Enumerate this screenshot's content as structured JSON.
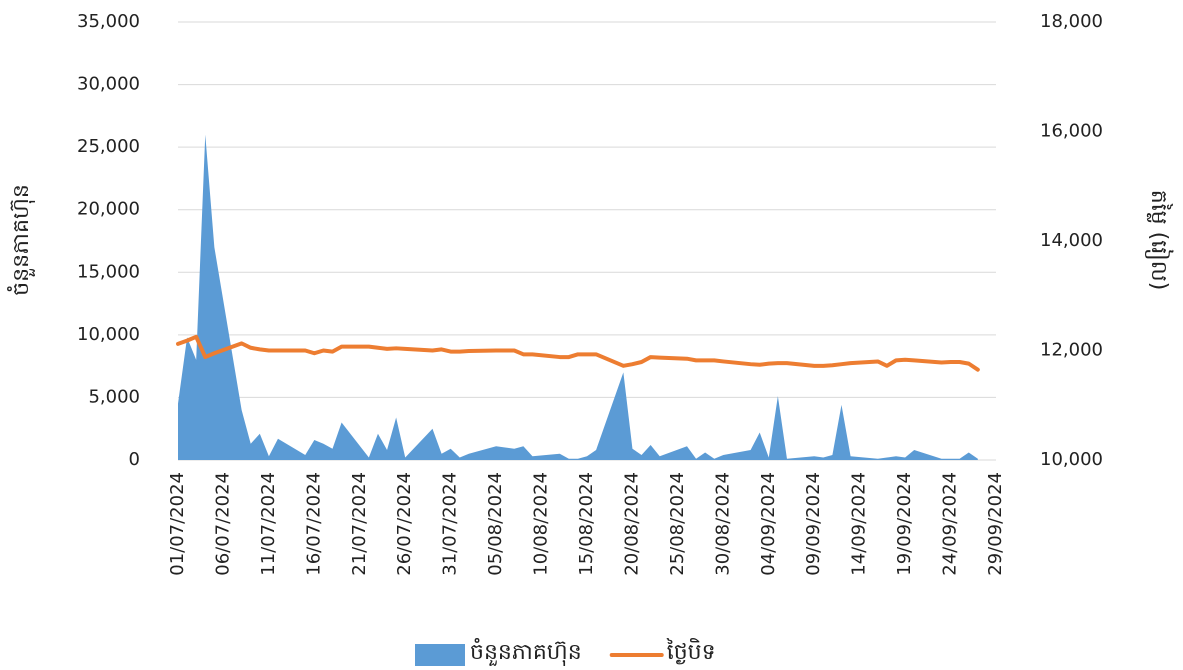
{
  "chart_data": {
    "type": "area-line",
    "x": [
      "01/07/2024",
      "02/07/2024",
      "03/07/2024",
      "04/07/2024",
      "05/07/2024",
      "08/07/2024",
      "09/07/2024",
      "10/07/2024",
      "11/07/2024",
      "12/07/2024",
      "15/07/2024",
      "16/07/2024",
      "17/07/2024",
      "18/07/2024",
      "19/07/2024",
      "22/07/2024",
      "23/07/2024",
      "24/07/2024",
      "25/07/2024",
      "26/07/2024",
      "29/07/2024",
      "30/07/2024",
      "31/07/2024",
      "01/08/2024",
      "02/08/2024",
      "05/08/2024",
      "06/08/2024",
      "07/08/2024",
      "08/08/2024",
      "09/08/2024",
      "12/08/2024",
      "13/08/2024",
      "14/08/2024",
      "15/08/2024",
      "16/08/2024",
      "19/08/2024",
      "20/08/2024",
      "21/08/2024",
      "22/08/2024",
      "23/08/2024",
      "26/08/2024",
      "27/08/2024",
      "28/08/2024",
      "29/08/2024",
      "30/08/2024",
      "02/09/2024",
      "03/09/2024",
      "04/09/2024",
      "05/09/2024",
      "06/09/2024",
      "09/09/2024",
      "10/09/2024",
      "11/09/2024",
      "12/09/2024",
      "13/09/2024",
      "16/09/2024",
      "17/09/2024",
      "18/09/2024",
      "19/09/2024",
      "20/09/2024",
      "23/09/2024",
      "24/09/2024",
      "25/09/2024",
      "26/09/2024",
      "27/09/2024"
    ],
    "series": [
      {
        "name": "ចំនួនភាគហ៊ុន",
        "type": "area",
        "color": "#5b9bd5",
        "values": [
          4500,
          9800,
          8000,
          26000,
          17000,
          4000,
          1300,
          2100,
          300,
          1700,
          400,
          1600,
          1300,
          900,
          3000,
          200,
          2100,
          800,
          3400,
          200,
          2500,
          500,
          900,
          200,
          500,
          1100,
          1000,
          900,
          1100,
          300,
          500,
          100,
          100,
          300,
          800,
          7000,
          900,
          400,
          1200,
          300,
          1100,
          100,
          600,
          100,
          400,
          800,
          2200,
          200,
          5100,
          100,
          300,
          200,
          400,
          4400,
          300,
          100,
          200,
          300,
          200,
          800,
          100,
          100,
          100,
          600,
          100
        ]
      },
      {
        "name": "ថ្ងៃបិទ",
        "type": "line",
        "axis": "y2",
        "color": "#ed7d31",
        "values": [
          12120,
          12180,
          12250,
          11880,
          11950,
          12130,
          12050,
          12020,
          12000,
          12000,
          12000,
          11950,
          12000,
          11980,
          12070,
          12070,
          12050,
          12030,
          12040,
          12030,
          12000,
          12020,
          11980,
          11980,
          11990,
          12000,
          12000,
          12000,
          11930,
          11930,
          11880,
          11880,
          11930,
          11930,
          11930,
          11720,
          11750,
          11790,
          11880,
          11870,
          11850,
          11820,
          11820,
          11820,
          11800,
          11750,
          11740,
          11760,
          11770,
          11770,
          11720,
          11720,
          11730,
          11750,
          11770,
          11800,
          11720,
          11820,
          11830,
          11820,
          11780,
          11790,
          11790,
          11760,
          11650
        ]
      }
    ],
    "xlim": [
      "01/07/2024",
      "29/09/2024"
    ],
    "xticks": [
      "01/07/2024",
      "06/07/2024",
      "11/07/2024",
      "16/07/2024",
      "21/07/2024",
      "26/07/2024",
      "31/07/2024",
      "05/08/2024",
      "10/08/2024",
      "15/08/2024",
      "20/08/2024",
      "25/08/2024",
      "30/08/2024",
      "04/09/2024",
      "09/09/2024",
      "14/09/2024",
      "19/09/2024",
      "24/09/2024",
      "29/09/2024"
    ],
    "ylim": [
      0,
      35000
    ],
    "yticks": [
      0,
      {
        "value": 5000,
        "label": "5,000"
      },
      {
        "value": 10000,
        "label": "10,000"
      },
      {
        "value": 15000,
        "label": "15,000"
      },
      {
        "value": 20000,
        "label": "20,000"
      },
      {
        "value": 25000,
        "label": "25,000"
      },
      {
        "value": 30000,
        "label": "30,000"
      },
      {
        "value": 35000,
        "label": "35,000"
      }
    ],
    "y2lim": [
      10000,
      18000
    ],
    "y2ticks": [
      {
        "value": 10000,
        "label": "10,000"
      },
      {
        "value": 12000,
        "label": "12,000"
      },
      {
        "value": 14000,
        "label": "14,000"
      },
      {
        "value": 16000,
        "label": "16,000"
      },
      {
        "value": 18000,
        "label": "18,000"
      }
    ],
    "ylabel": "ចំនួនភាគហ៊ុន",
    "y2label": "តម្លៃ (រៀល)",
    "grid": true,
    "legend": "bottom"
  }
}
